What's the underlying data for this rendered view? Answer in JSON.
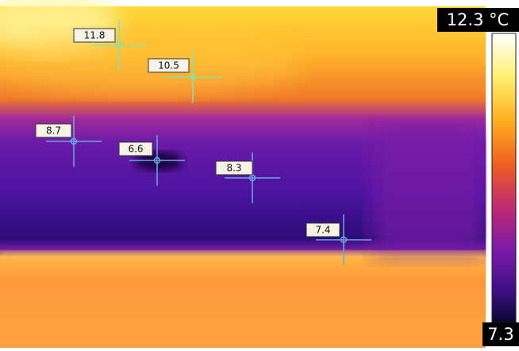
{
  "scale": {
    "max_label": "12.3 °C",
    "min_label": "7.3"
  },
  "spots": [
    {
      "label": "11.8"
    },
    {
      "label": "10.5"
    },
    {
      "label": "8.7"
    },
    {
      "label": "6.6"
    },
    {
      "label": "8.3"
    },
    {
      "label": "7.4"
    }
  ]
}
